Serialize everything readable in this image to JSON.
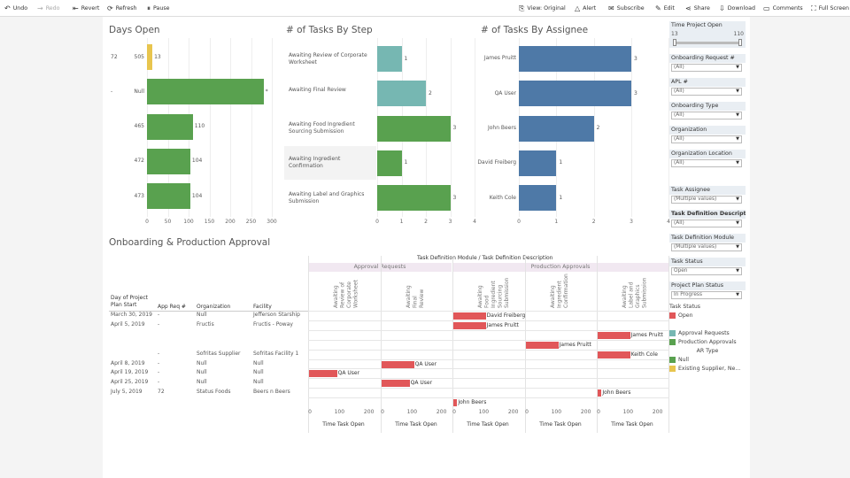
{
  "toolbar": {
    "undo": "Undo",
    "redo": "Redo",
    "revert": "Revert",
    "refresh": "Refresh",
    "pause": "Pause",
    "view": "View: Original",
    "alert": "Alert",
    "subscribe": "Subscribe",
    "edit": "Edit",
    "share": "Share",
    "download": "Download",
    "comments": "Comments",
    "full_screen": "Full Screen"
  },
  "days_open": {
    "title": "Days Open",
    "rows": [
      {
        "c1": "72",
        "c2": "505",
        "value": 13,
        "label": "13",
        "color": "#e8c54e"
      },
      {
        "c1": "-",
        "c2": "Null",
        "value": 280,
        "label": "*",
        "color": "#59a14f"
      },
      {
        "c1": "",
        "c2": "465",
        "value": 110,
        "label": "110",
        "color": "#59a14f"
      },
      {
        "c1": "",
        "c2": "472",
        "value": 104,
        "label": "104",
        "color": "#59a14f"
      },
      {
        "c1": "",
        "c2": "473",
        "value": 104,
        "label": "104",
        "color": "#59a14f"
      }
    ],
    "ticks": [
      "0",
      "50",
      "100",
      "150",
      "200",
      "250",
      "300"
    ]
  },
  "tasks_by_step": {
    "title": "# of Tasks By Step",
    "rows": [
      {
        "label": "Awaiting Review of Corporate Worksheet",
        "value": 1,
        "vlabel": "1",
        "color": "#76b7b2"
      },
      {
        "label": "Awaiting Final Review",
        "value": 2,
        "vlabel": "2",
        "color": "#76b7b2"
      },
      {
        "label": "Awaiting Food Ingredient Sourcing Submission",
        "value": 3,
        "vlabel": "3",
        "color": "#59a14f"
      },
      {
        "label": "Awaiting Ingredient Confirmation",
        "value": 1,
        "vlabel": "1",
        "color": "#59a14f"
      },
      {
        "label": "Awaiting Label and Graphics Submission",
        "value": 3,
        "vlabel": "3",
        "color": "#59a14f"
      }
    ],
    "ticks": [
      "0",
      "1",
      "2",
      "3",
      "4"
    ]
  },
  "tasks_by_assignee": {
    "title": "# of Tasks By Assignee",
    "rows": [
      {
        "label": "James Pruitt",
        "value": 3,
        "vlabel": "3"
      },
      {
        "label": "QA User",
        "value": 3,
        "vlabel": "3"
      },
      {
        "label": "John Beers",
        "value": 2,
        "vlabel": "2"
      },
      {
        "label": "David Freiberg",
        "value": 1,
        "vlabel": "1"
      },
      {
        "label": "Keith Cole",
        "value": 1,
        "vlabel": "1"
      }
    ],
    "color": "#4e79a7",
    "ticks": [
      "0",
      "1",
      "2",
      "3",
      "4"
    ]
  },
  "approval": {
    "title": "Onboarding & Production Approval",
    "header": "Task Definition Module  /  Task Definition Description",
    "group1": "Approval Requests",
    "group2": "Production Approvals",
    "col_headers": [
      "Day of Project Plan Start",
      "App Req #",
      "Organization",
      "Facility"
    ],
    "columns": [
      "Awaiting Review of Corporate Worksheet",
      "Awaiting Final Review",
      "Awaiting Food Ingredient Sourcing Submission",
      "Awaiting Ingredient Confirmation",
      "Awaiting Label and Graphics Submission"
    ],
    "rows": [
      {
        "date": "March 30, 2019",
        "req": "-",
        "org": "Null",
        "fac": "Jefferson Starship"
      },
      {
        "date": "April 5, 2019",
        "req": "-",
        "org": "Fructis",
        "fac": "Fructis - Poway"
      },
      {
        "date": "",
        "req": "",
        "org": "",
        "fac": ""
      },
      {
        "date": "",
        "req": "",
        "org": "",
        "fac": ""
      },
      {
        "date": "",
        "req": "-",
        "org": "Sofritas Supplier",
        "fac": "Sofritas Facility 1"
      },
      {
        "date": "April 8, 2019",
        "req": "-",
        "org": "Null",
        "fac": "Null"
      },
      {
        "date": "April 19, 2019",
        "req": "-",
        "org": "Null",
        "fac": "Null"
      },
      {
        "date": "April 25, 2019",
        "req": "-",
        "org": "Null",
        "fac": "Null"
      },
      {
        "date": "July 5, 2019",
        "req": "72",
        "org": "Status Foods",
        "fac": "Beers n Beers"
      },
      {
        "date": "",
        "req": "",
        "org": "",
        "fac": ""
      }
    ],
    "bars": [
      {
        "row": 0,
        "col": 2,
        "value": 110,
        "label": "David Freiberg"
      },
      {
        "row": 1,
        "col": 2,
        "value": 110,
        "label": "James Pruitt"
      },
      {
        "row": 2,
        "col": 4,
        "value": 110,
        "label": "James Pruitt"
      },
      {
        "row": 3,
        "col": 3,
        "value": 110,
        "label": "James Pruitt"
      },
      {
        "row": 4,
        "col": 4,
        "value": 110,
        "label": "Keith Cole"
      },
      {
        "row": 5,
        "col": 1,
        "value": 110,
        "label": "QA User"
      },
      {
        "row": 6,
        "col": 0,
        "value": 95,
        "label": "QA User"
      },
      {
        "row": 7,
        "col": 1,
        "value": 95,
        "label": "QA User"
      },
      {
        "row": 8,
        "col": 4,
        "value": 13,
        "label": "John Beers"
      },
      {
        "row": 9,
        "col": 2,
        "value": 13,
        "label": "John Beers"
      }
    ],
    "bar_color": "#e15759",
    "ticks": [
      "0",
      "100",
      "200"
    ],
    "axis_title": "Time Task Open"
  },
  "filters": {
    "time_open": {
      "label": "Time Project Open",
      "min": "13",
      "max": "110"
    },
    "items": [
      {
        "label": "Onboarding Request #",
        "value": "(All)",
        "bold": false
      },
      {
        "label": "APL #",
        "value": "(All)",
        "bold": false
      },
      {
        "label": "Onboarding Type",
        "value": "(All)",
        "bold": false
      },
      {
        "label": "Organization",
        "value": "(All)",
        "bold": false
      },
      {
        "label": "Organization Location",
        "value": "(All)",
        "bold": false
      }
    ],
    "items2": [
      {
        "label": "Task Assignee",
        "value": "(Multiple values)",
        "bold": false
      },
      {
        "label": "Task Definition Descripti...",
        "value": "(All)",
        "bold": true
      },
      {
        "label": "Task Definition Module",
        "value": "(Multiple values)",
        "bold": false
      },
      {
        "label": "Task Status",
        "value": "Open",
        "bold": false
      },
      {
        "label": "Project Plan Status",
        "value": "In Progress",
        "bold": false
      }
    ],
    "legend_task_status": {
      "title": "Task Status",
      "items": [
        {
          "label": "Open",
          "color": "#e15759"
        }
      ]
    },
    "legend_module": [
      {
        "label": "Approval Requests",
        "color": "#76b7b2"
      },
      {
        "label": "Production Approvals",
        "color": "#59a14f"
      }
    ],
    "legend_ar": {
      "title": "AR Type",
      "items": [
        {
          "label": "Null",
          "color": "#59a14f"
        },
        {
          "label": "Existing Supplier, Ne...",
          "color": "#e8c54e"
        }
      ]
    }
  }
}
